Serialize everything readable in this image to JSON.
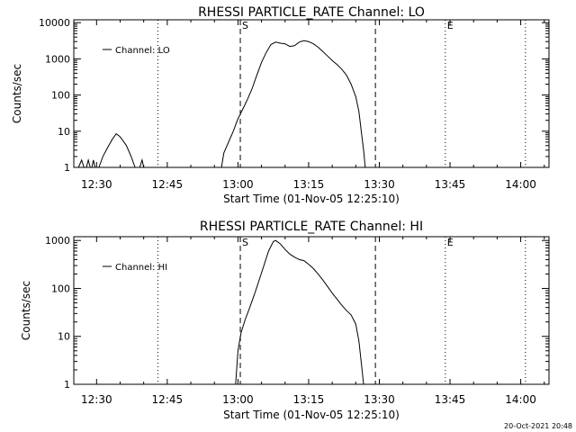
{
  "timestamp": "20-Oct-2021 20:48",
  "chart_data": [
    {
      "type": "line",
      "title": "RHESSI PARTICLE_RATE Channel: LO",
      "xlabel": "Start Time (01-Nov-05 12:25:10)",
      "ylabel": "Counts/sec",
      "y_scale": "log",
      "ylim": [
        1,
        12000
      ],
      "xlim": [
        "12:25:10",
        "14:06:00"
      ],
      "x_ticks": [
        "12:30",
        "12:45",
        "13:00",
        "13:15",
        "13:30",
        "13:45",
        "14:00"
      ],
      "y_ticks": [
        "1",
        "10",
        "100",
        "1000",
        "10000"
      ],
      "legend": {
        "position": "top-left",
        "entries": [
          "Channel: LO"
        ]
      },
      "markers": [
        {
          "label": "",
          "time": "12:43:00",
          "style": "dotted"
        },
        {
          "label": "S",
          "time": "13:00:30",
          "style": "dashed"
        },
        {
          "label": "",
          "time": "13:29:10",
          "style": "dashed"
        },
        {
          "label": "E",
          "time": "13:44:00",
          "style": "dotted"
        },
        {
          "label": "",
          "time": "14:01:00",
          "style": "dotted"
        }
      ],
      "series": [
        {
          "name": "Channel: LO",
          "segments": [
            [
              [
                "12:26:10",
                1
              ],
              [
                "12:26:50",
                1.6
              ],
              [
                "12:27:20",
                1
              ]
            ],
            [
              [
                "12:27:50",
                1
              ],
              [
                "12:28:15",
                1.6
              ],
              [
                "12:28:40",
                1
              ]
            ],
            [
              [
                "12:29:00",
                1
              ],
              [
                "12:29:20",
                1.6
              ],
              [
                "12:29:40",
                1
              ]
            ],
            [
              [
                "12:30:30",
                1
              ],
              [
                "12:31:20",
                2
              ],
              [
                "12:32:20",
                3.5
              ],
              [
                "12:33:20",
                6
              ],
              [
                "12:34:10",
                8.5
              ],
              [
                "12:35:00",
                7
              ],
              [
                "12:36:20",
                4
              ],
              [
                "12:37:20",
                2
              ],
              [
                "12:38:10",
                1
              ]
            ],
            [
              [
                "12:39:10",
                1
              ],
              [
                "12:39:40",
                1.6
              ],
              [
                "12:40:00",
                1
              ]
            ],
            [
              [
                "12:56:30",
                1
              ],
              [
                "12:57:00",
                2.5
              ],
              [
                "12:58:00",
                5
              ],
              [
                "12:59:00",
                10
              ],
              [
                "13:00:00",
                22
              ],
              [
                "13:01:00",
                40
              ],
              [
                "13:02:00",
                75
              ],
              [
                "13:03:00",
                150
              ],
              [
                "13:04:00",
                350
              ],
              [
                "13:05:00",
                800
              ],
              [
                "13:06:00",
                1500
              ],
              [
                "13:07:00",
                2500
              ],
              [
                "13:08:00",
                2900
              ],
              [
                "13:09:00",
                2700
              ],
              [
                "13:10:00",
                2600
              ],
              [
                "13:11:00",
                2200
              ],
              [
                "13:12:00",
                2300
              ],
              [
                "13:13:00",
                2900
              ],
              [
                "13:14:00",
                3200
              ],
              [
                "13:15:00",
                3000
              ],
              [
                "13:16:00",
                2600
              ],
              [
                "13:17:00",
                2100
              ],
              [
                "13:18:00",
                1600
              ],
              [
                "13:19:00",
                1200
              ],
              [
                "13:20:00",
                900
              ],
              [
                "13:21:00",
                700
              ],
              [
                "13:22:00",
                520
              ],
              [
                "13:23:00",
                360
              ],
              [
                "13:24:00",
                200
              ],
              [
                "13:25:00",
                90
              ],
              [
                "13:25:40",
                35
              ],
              [
                "13:26:10",
                10
              ],
              [
                "13:26:40",
                3
              ],
              [
                "13:27:00",
                1
              ]
            ]
          ]
        }
      ]
    },
    {
      "type": "line",
      "title": "RHESSI PARTICLE_RATE Channel: HI",
      "xlabel": "Start Time (01-Nov-05 12:25:10)",
      "ylabel": "Counts/sec",
      "y_scale": "log",
      "ylim": [
        1,
        1200
      ],
      "xlim": [
        "12:25:10",
        "14:06:00"
      ],
      "x_ticks": [
        "12:30",
        "12:45",
        "13:00",
        "13:15",
        "13:30",
        "13:45",
        "14:00"
      ],
      "y_ticks": [
        "1",
        "10",
        "100",
        "1000"
      ],
      "legend": {
        "position": "top-left",
        "entries": [
          "Channel: HI"
        ]
      },
      "markers": [
        {
          "label": "",
          "time": "12:43:00",
          "style": "dotted"
        },
        {
          "label": "S",
          "time": "13:00:30",
          "style": "dashed"
        },
        {
          "label": "",
          "time": "13:29:10",
          "style": "dashed"
        },
        {
          "label": "E",
          "time": "13:44:00",
          "style": "dotted"
        },
        {
          "label": "",
          "time": "14:01:00",
          "style": "dotted"
        }
      ],
      "series": [
        {
          "name": "Channel: HI",
          "segments": [
            [
              [
                "12:59:30",
                1
              ],
              [
                "13:00:00",
                5
              ],
              [
                "13:00:40",
                12
              ],
              [
                "13:01:30",
                22
              ],
              [
                "13:02:30",
                40
              ],
              [
                "13:03:30",
                75
              ],
              [
                "13:04:30",
                150
              ],
              [
                "13:05:30",
                300
              ],
              [
                "13:06:30",
                600
              ],
              [
                "13:07:30",
                950
              ],
              [
                "13:08:00",
                1000
              ],
              [
                "13:09:00",
                850
              ],
              [
                "13:10:00",
                650
              ],
              [
                "13:11:00",
                520
              ],
              [
                "13:12:00",
                450
              ],
              [
                "13:13:00",
                400
              ],
              [
                "13:14:00",
                380
              ],
              [
                "13:15:00",
                320
              ],
              [
                "13:16:00",
                260
              ],
              [
                "13:17:00",
                200
              ],
              [
                "13:18:00",
                150
              ],
              [
                "13:19:00",
                110
              ],
              [
                "13:20:00",
                80
              ],
              [
                "13:21:00",
                60
              ],
              [
                "13:22:00",
                45
              ],
              [
                "13:23:00",
                35
              ],
              [
                "13:24:00",
                28
              ],
              [
                "13:25:00",
                18
              ],
              [
                "13:25:40",
                8
              ],
              [
                "13:26:20",
                2
              ],
              [
                "13:26:40",
                1
              ]
            ]
          ]
        }
      ]
    }
  ]
}
